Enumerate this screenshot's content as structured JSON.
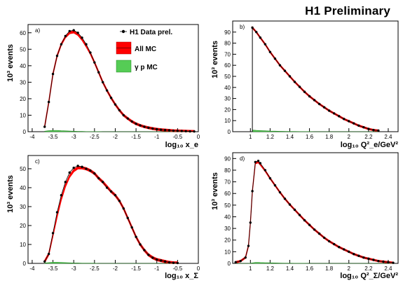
{
  "header": {
    "title": "H1 Preliminary"
  },
  "legend": {
    "data_label": "H1 Data prel.",
    "allmc_label": "All MC",
    "gp_label": "γ p MC",
    "colors": {
      "data": "#000000",
      "allmc": "#ff0000",
      "gp": "#55cc55"
    }
  },
  "chart_data": [
    {
      "id": "a",
      "panel_label": "a)",
      "type": "line",
      "xlabel": "log₁₀ x_e",
      "ylabel": "10³ events",
      "xlim": [
        -4.1,
        0
      ],
      "ylim": [
        0,
        65
      ],
      "xticks": [
        -4,
        -3.5,
        -3,
        -2.5,
        -2,
        -1.5,
        -1,
        -0.5,
        0
      ],
      "xtick_labels": [
        "-4",
        "-3.5",
        "-3",
        "-2.5",
        "-2",
        "-1.5",
        "-1",
        "-0.5",
        "0"
      ],
      "yticks": [
        0,
        10,
        20,
        30,
        40,
        50,
        60
      ],
      "x": [
        -3.7,
        -3.6,
        -3.5,
        -3.4,
        -3.3,
        -3.2,
        -3.1,
        -3.0,
        -2.9,
        -2.8,
        -2.7,
        -2.6,
        -2.5,
        -2.4,
        -2.3,
        -2.2,
        -2.1,
        -2.0,
        -1.9,
        -1.8,
        -1.7,
        -1.6,
        -1.5,
        -1.4,
        -1.3,
        -1.2,
        -1.1,
        -1.0,
        -0.9,
        -0.8,
        -0.7,
        -0.6,
        -0.5,
        -0.4,
        -0.3,
        -0.2,
        -0.1
      ],
      "series": [
        {
          "name": "H1 Data prel.",
          "values": [
            3,
            18,
            35,
            46,
            53,
            58,
            61,
            61.5,
            60,
            57,
            53,
            48,
            42,
            36,
            30,
            25,
            20.5,
            16.5,
            13,
            10,
            8,
            6.2,
            4.8,
            3.8,
            3,
            2.4,
            1.9,
            1.5,
            1.2,
            1,
            0.8,
            0.6,
            0.5,
            0.4,
            0.3,
            0.2,
            0.15
          ]
        },
        {
          "name": "All MC",
          "values": [
            3,
            18,
            35,
            46,
            53,
            57.5,
            60,
            60.5,
            59,
            56,
            52,
            47.5,
            42,
            36,
            30,
            25,
            20.5,
            16.5,
            13,
            10,
            8,
            6.2,
            4.8,
            3.8,
            3,
            2.4,
            1.9,
            1.5,
            1.2,
            1,
            0.8,
            0.6,
            0.5,
            0.4,
            0.3,
            0.2,
            0.15
          ]
        },
        {
          "name": "γ p MC",
          "values": [
            0.3,
            0.6,
            0.8,
            0.8,
            0.6,
            0.5,
            0.4,
            0.3,
            0.2,
            0.2,
            0.1,
            0.1,
            0.1,
            0.1,
            0,
            0,
            0,
            0,
            0,
            0,
            0,
            0,
            0,
            0,
            0,
            0,
            0,
            0,
            0,
            0,
            0,
            0,
            0,
            0,
            0,
            0,
            0
          ]
        }
      ]
    },
    {
      "id": "b",
      "panel_label": "b)",
      "type": "line",
      "xlabel": "log₁₀ Q²_e/GeV²",
      "ylabel": "10³ events",
      "xlim": [
        0.82,
        2.5
      ],
      "ylim": [
        0,
        100
      ],
      "xticks": [
        1,
        1.2,
        1.4,
        1.6,
        1.8,
        2,
        2.2,
        2.4
      ],
      "xtick_labels": [
        "1",
        "1.2",
        "1.4",
        "1.6",
        "1.8",
        "2",
        "2.2",
        "2.4"
      ],
      "yticks": [
        0,
        10,
        20,
        30,
        40,
        50,
        60,
        70,
        80,
        90
      ],
      "x": [
        1.02,
        1.06,
        1.1,
        1.15,
        1.2,
        1.25,
        1.3,
        1.35,
        1.4,
        1.45,
        1.5,
        1.55,
        1.6,
        1.65,
        1.7,
        1.75,
        1.8,
        1.85,
        1.9,
        1.95,
        2.0,
        2.05,
        2.1,
        2.15,
        2.2,
        2.25,
        2.3
      ],
      "series": [
        {
          "name": "H1 Data prel.",
          "values": [
            94,
            90,
            85,
            79,
            72,
            66,
            60,
            55,
            50,
            45,
            40.5,
            36,
            32,
            28.5,
            25,
            22,
            19,
            16.5,
            14,
            11.5,
            9.5,
            7.5,
            5.5,
            4,
            2.5,
            1.5,
            1
          ]
        },
        {
          "name": "All MC",
          "values": [
            94,
            90,
            85,
            79,
            72,
            66,
            60,
            55,
            50,
            45,
            40.5,
            36,
            32,
            28.5,
            25,
            22,
            19,
            16.5,
            14,
            11.5,
            9.5,
            7.5,
            5.5,
            4,
            2.5,
            1.5,
            1
          ]
        },
        {
          "name": "γ p MC",
          "values": [
            1.5,
            1.2,
            1,
            0.8,
            0.6,
            0.5,
            0.4,
            0.3,
            0.2,
            0.2,
            0.1,
            0.1,
            0.1,
            0,
            0,
            0,
            0,
            0,
            0,
            0,
            0,
            0,
            0,
            0,
            0,
            0,
            0
          ]
        }
      ]
    },
    {
      "id": "c",
      "panel_label": "c)",
      "type": "line",
      "xlabel": "log₁₀ x_Σ",
      "ylabel": "10³ events",
      "xlim": [
        -4.1,
        0
      ],
      "ylim": [
        0,
        57
      ],
      "xticks": [
        -4,
        -3.5,
        -3,
        -2.5,
        -2,
        -1.5,
        -1,
        -0.5,
        0
      ],
      "xtick_labels": [
        "-4",
        "-3.5",
        "-3",
        "-2.5",
        "-2",
        "-1.5",
        "-1",
        "-0.5",
        "0"
      ],
      "yticks": [
        0,
        10,
        20,
        30,
        40,
        50
      ],
      "x": [
        -3.7,
        -3.6,
        -3.5,
        -3.4,
        -3.3,
        -3.2,
        -3.1,
        -3.0,
        -2.9,
        -2.8,
        -2.7,
        -2.6,
        -2.5,
        -2.4,
        -2.3,
        -2.2,
        -2.1,
        -2.0,
        -1.9,
        -1.8,
        -1.7,
        -1.6,
        -1.5,
        -1.4,
        -1.3,
        -1.2,
        -1.1,
        -1.0,
        -0.9,
        -0.8,
        -0.7,
        -0.6,
        -0.5
      ],
      "series": [
        {
          "name": "H1 Data prel.",
          "values": [
            1,
            5,
            16,
            27,
            36,
            43,
            48,
            50.5,
            51.5,
            51,
            50,
            49,
            47.5,
            45,
            43,
            40,
            38,
            36,
            33,
            29,
            24,
            19,
            14,
            10,
            7,
            4.5,
            3,
            2,
            1.5,
            1,
            0.5,
            0.3,
            0.2
          ]
        },
        {
          "name": "All MC",
          "values": [
            1,
            5,
            15,
            25,
            34,
            41,
            46,
            49,
            50.5,
            50.5,
            50,
            49,
            47.5,
            45,
            43,
            40.5,
            38,
            36,
            33,
            29,
            24,
            19,
            14,
            10,
            7,
            4.5,
            3,
            2,
            1.5,
            1,
            0.5,
            0.3,
            0.2
          ]
        },
        {
          "name": "γ p MC",
          "values": [
            0.2,
            0.4,
            0.6,
            0.6,
            0.5,
            0.4,
            0.3,
            0.2,
            0.2,
            0.1,
            0.1,
            0.1,
            0.1,
            0,
            0,
            0,
            0,
            0,
            0,
            0,
            0,
            0,
            0,
            0,
            0,
            0,
            0,
            0,
            0,
            0,
            0,
            0,
            0
          ]
        }
      ]
    },
    {
      "id": "d",
      "panel_label": "d)",
      "type": "line",
      "xlabel": "log₁₀ Q²_Σ/GeV²",
      "ylabel": "10³ events",
      "xlim": [
        0.82,
        2.5
      ],
      "ylim": [
        0,
        95
      ],
      "xticks": [
        1,
        1.2,
        1.4,
        1.6,
        1.8,
        2,
        2.2,
        2.4
      ],
      "xtick_labels": [
        "1",
        "1.2",
        "1.4",
        "1.6",
        "1.8",
        "2",
        "2.2",
        "2.4"
      ],
      "yticks": [
        0,
        10,
        20,
        30,
        40,
        50,
        60,
        70,
        80,
        90
      ],
      "x": [
        0.85,
        0.9,
        0.95,
        0.98,
        1.0,
        1.02,
        1.05,
        1.08,
        1.1,
        1.15,
        1.2,
        1.25,
        1.3,
        1.35,
        1.4,
        1.45,
        1.5,
        1.55,
        1.6,
        1.65,
        1.7,
        1.75,
        1.8,
        1.85,
        1.9,
        1.95,
        2.0,
        2.05,
        2.1,
        2.15,
        2.2,
        2.25,
        2.3,
        2.35,
        2.4,
        2.45
      ],
      "series": [
        {
          "name": "H1 Data prel.",
          "values": [
            1,
            2,
            5,
            15,
            35,
            62,
            87,
            88,
            86,
            80,
            73,
            67,
            61,
            55.5,
            50.5,
            46,
            41.5,
            37,
            33,
            29,
            25.5,
            22,
            19,
            16.5,
            14,
            12,
            10,
            8,
            6.5,
            5,
            4,
            3,
            2,
            1.5,
            1,
            0.5
          ]
        },
        {
          "name": "All MC",
          "values": [
            1,
            2,
            5,
            15,
            35,
            62,
            86,
            87,
            85,
            79.5,
            73,
            67,
            61,
            55.5,
            50.5,
            46,
            41.5,
            37,
            33,
            29,
            25.5,
            22,
            19,
            16.5,
            14,
            12,
            10,
            8,
            6.5,
            5,
            4,
            3,
            2,
            1.5,
            1,
            0.5
          ]
        },
        {
          "name": "γ p MC",
          "values": [
            0,
            0,
            0,
            0,
            0.2,
            0.4,
            0.8,
            0.8,
            0.7,
            0.6,
            0.5,
            0.4,
            0.3,
            0.2,
            0.2,
            0.1,
            0.1,
            0.1,
            0,
            0,
            0,
            0,
            0,
            0,
            0,
            0,
            0,
            0,
            0,
            0,
            0,
            0,
            0,
            0,
            0,
            0
          ]
        }
      ]
    }
  ]
}
